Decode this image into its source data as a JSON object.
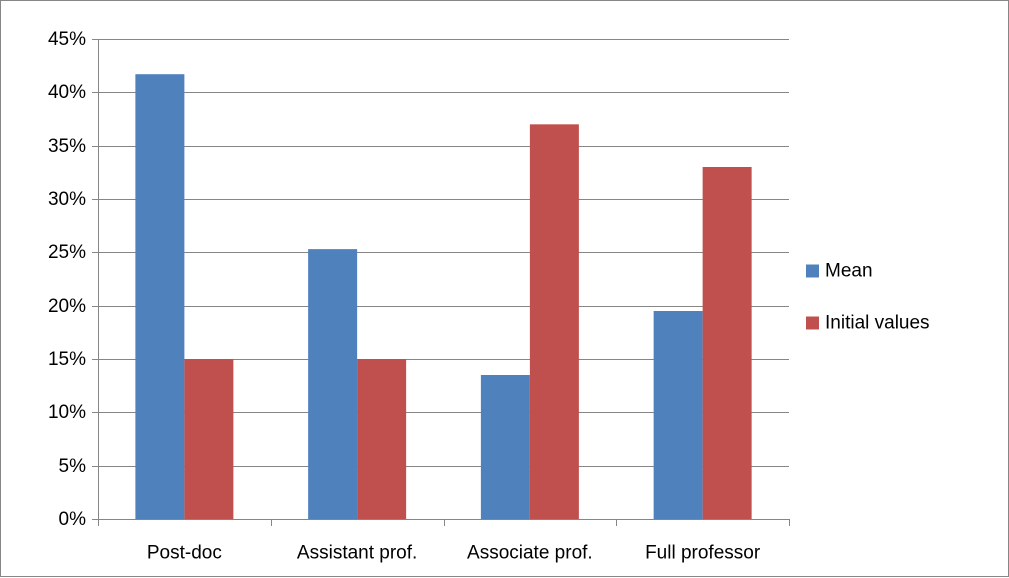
{
  "chart_data": {
    "type": "bar",
    "categories": [
      "Post-doc",
      "Assistant prof.",
      "Associate prof.",
      "Full professor"
    ],
    "series": [
      {
        "name": "Mean",
        "values": [
          0.417,
          0.253,
          0.135,
          0.195
        ],
        "color": "#4F81BD"
      },
      {
        "name": "Initial values",
        "values": [
          0.15,
          0.15,
          0.37,
          0.33
        ],
        "color": "#C0504D"
      }
    ],
    "ylim": [
      0,
      0.45
    ],
    "yticks": [
      0,
      0.05,
      0.1,
      0.15,
      0.2,
      0.25,
      0.3,
      0.35,
      0.4,
      0.45
    ],
    "ytick_labels": [
      "0%",
      "5%",
      "10%",
      "15%",
      "20%",
      "25%",
      "30%",
      "35%",
      "40%",
      "45%"
    ],
    "grid": true,
    "legend_position": "right",
    "title": "",
    "xlabel": "",
    "ylabel": ""
  },
  "colors": {
    "grid": "#868686",
    "axis": "#868686",
    "text": "#000000"
  }
}
